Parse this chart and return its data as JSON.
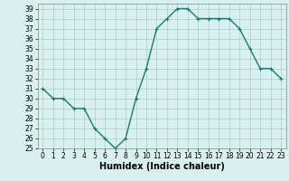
{
  "x": [
    0,
    1,
    2,
    3,
    4,
    5,
    6,
    7,
    8,
    9,
    10,
    11,
    12,
    13,
    14,
    15,
    16,
    17,
    18,
    19,
    20,
    21,
    22,
    23
  ],
  "y": [
    31,
    30,
    30,
    29,
    29,
    27,
    26,
    25,
    26,
    30,
    33,
    37,
    38,
    39,
    39,
    38,
    38,
    38,
    38,
    37,
    35,
    33,
    33,
    32
  ],
  "line_color": "#1a7a6e",
  "marker": "+",
  "marker_size": 3,
  "bg_color": "#d8f0ee",
  "grid_color": "#aacccc",
  "xlabel": "Humidex (Indice chaleur)",
  "xlim": [
    -0.5,
    23.5
  ],
  "ylim": [
    25,
    39.5
  ],
  "yticks": [
    25,
    26,
    27,
    28,
    29,
    30,
    31,
    32,
    33,
    34,
    35,
    36,
    37,
    38,
    39
  ],
  "xticks": [
    0,
    1,
    2,
    3,
    4,
    5,
    6,
    7,
    8,
    9,
    10,
    11,
    12,
    13,
    14,
    15,
    16,
    17,
    18,
    19,
    20,
    21,
    22,
    23
  ],
  "tick_label_fontsize": 5.5,
  "xlabel_fontsize": 7,
  "line_width": 1.0
}
